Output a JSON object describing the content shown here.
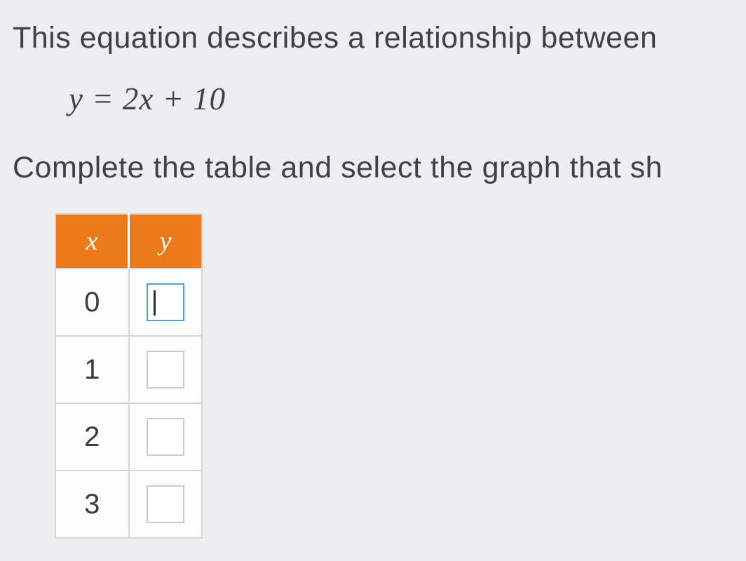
{
  "text": {
    "line1": "This equation describes a relationship between",
    "equation": "y = 2x + 10",
    "line2": "Complete the table and select the graph that sh"
  },
  "table": {
    "header_bg": "#ec7a1a",
    "header_fg": "#ffffff",
    "border_color": "#d4d6d8",
    "cell_bg": "#fcfdfd",
    "active_border": "#4aa3e0",
    "columns": [
      "x",
      "y"
    ],
    "rows": [
      {
        "x": "0",
        "y": "",
        "active": true
      },
      {
        "x": "1",
        "y": "",
        "active": false
      },
      {
        "x": "2",
        "y": "",
        "active": false
      },
      {
        "x": "3",
        "y": "",
        "active": false
      }
    ]
  },
  "page": {
    "background": "#eceef0",
    "text_color": "#3f4244",
    "body_fontsize": 43,
    "equation_fontsize": 45,
    "cell_fontsize": 40,
    "header_fontsize": 38
  }
}
